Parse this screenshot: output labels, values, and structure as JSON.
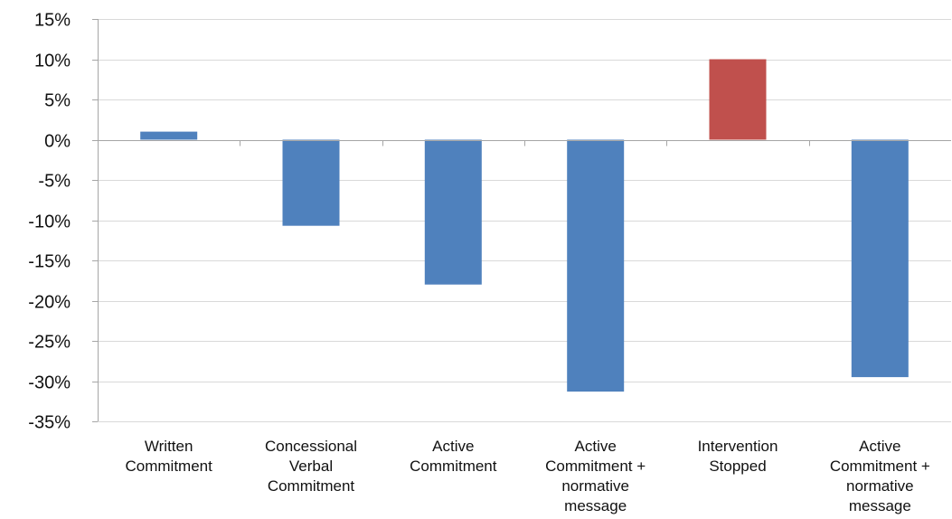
{
  "chart_data": {
    "type": "bar",
    "categories": [
      [
        "Written",
        "Commitment"
      ],
      [
        "Concessional",
        "Verbal",
        "Commitment"
      ],
      [
        "Active",
        "Commitment"
      ],
      [
        "Active",
        "Commitment +",
        "normative",
        "message"
      ],
      [
        "Intervention",
        "Stopped"
      ],
      [
        "Active",
        "Commitment +",
        "normative",
        "message"
      ]
    ],
    "values": [
      1,
      -10.7,
      -18,
      -31.3,
      10,
      -29.5
    ],
    "bar_colors": [
      "#4f81bd",
      "#4f81bd",
      "#4f81bd",
      "#4f81bd",
      "#c0504d",
      "#4f81bd"
    ],
    "ylim": [
      -35,
      15
    ],
    "yticks": [
      15,
      10,
      5,
      0,
      -5,
      -10,
      -15,
      -20,
      -25,
      -30,
      -35
    ],
    "ytick_labels": [
      "15%",
      "10%",
      "5%",
      "0%",
      "-5%",
      "-10%",
      "-15%",
      "-20%",
      "-25%",
      "-30%",
      "-35%"
    ],
    "grid": true,
    "title": "",
    "xlabel": "",
    "ylabel": ""
  }
}
